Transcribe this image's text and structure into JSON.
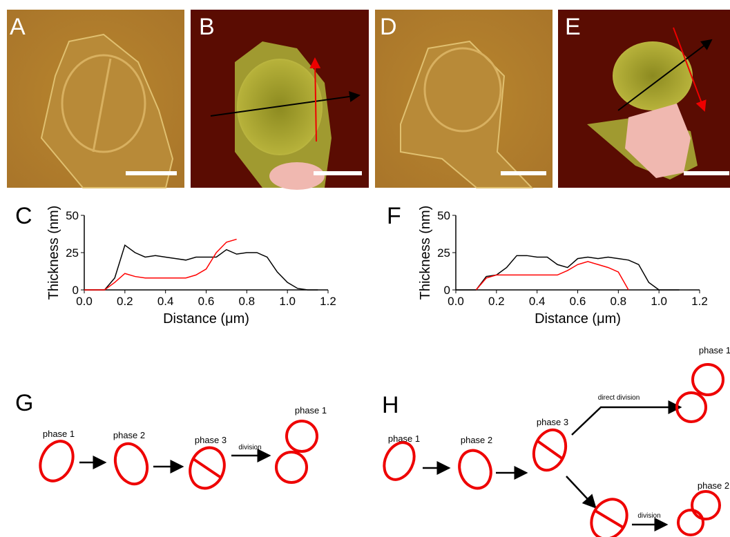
{
  "panels": [
    "A",
    "B",
    "D",
    "E"
  ],
  "chart_data": [
    {
      "type": "line",
      "panel": "C",
      "xlabel": "Distance (μm)",
      "ylabel": "Thickness (nm)",
      "x": [
        0,
        0.05,
        0.1,
        0.15,
        0.2,
        0.25,
        0.3,
        0.35,
        0.4,
        0.45,
        0.5,
        0.55,
        0.6,
        0.65,
        0.7,
        0.75,
        0.8,
        0.85,
        0.9,
        0.95,
        1.0,
        1.05,
        1.1,
        1.15,
        1.2
      ],
      "series": [
        {
          "color": "#000000",
          "values": [
            0,
            0,
            0,
            8,
            30,
            25,
            22,
            23,
            22,
            21,
            20,
            22,
            22,
            22,
            27,
            24,
            25,
            25,
            22,
            12,
            5,
            1,
            0,
            0,
            null
          ]
        },
        {
          "color": "#ff0000",
          "values": [
            0,
            0,
            0,
            5,
            11,
            9,
            8,
            8,
            8,
            8,
            8,
            10,
            14,
            25,
            32,
            34,
            null,
            null,
            null,
            null,
            null,
            null,
            null,
            null,
            null
          ]
        }
      ],
      "xlim": [
        0,
        1.2
      ],
      "ylim": [
        0,
        50
      ],
      "xticks": [
        {
          "value": 0,
          "label": "0.0"
        },
        0.2,
        0.4,
        0.6,
        0.8,
        {
          "value": 1,
          "label": "1.0"
        },
        1.2
      ],
      "yticks": [
        0,
        25,
        50
      ]
    },
    {
      "type": "line",
      "panel": "F",
      "xlabel": "Distance (μm)",
      "ylabel": "Thickness (nm)",
      "x": [
        0,
        0.05,
        0.1,
        0.15,
        0.2,
        0.25,
        0.3,
        0.35,
        0.4,
        0.45,
        0.5,
        0.55,
        0.6,
        0.65,
        0.7,
        0.75,
        0.8,
        0.85,
        0.9,
        0.95,
        1.0,
        1.05,
        1.1,
        1.15,
        1.2
      ],
      "series": [
        {
          "color": "#000000",
          "values": [
            0,
            0,
            0,
            9,
            10,
            15,
            23,
            23,
            22,
            22,
            17,
            15,
            21,
            22,
            21,
            22,
            21,
            20,
            17,
            5,
            0,
            0,
            0,
            null,
            null
          ]
        },
        {
          "color": "#ff0000",
          "values": [
            null,
            null,
            0,
            8,
            10,
            10,
            10,
            10,
            10,
            10,
            10,
            13,
            17,
            19,
            17,
            15,
            12,
            0,
            null,
            null,
            null,
            null,
            null,
            null,
            null
          ]
        }
      ],
      "xlim": [
        0,
        1.2
      ],
      "ylim": [
        0,
        50
      ],
      "xticks": [
        {
          "value": 0,
          "label": "0.0"
        },
        0.2,
        0.4,
        0.6,
        0.8,
        {
          "value": 1,
          "label": "1.0"
        },
        1.2
      ],
      "yticks": [
        0,
        25,
        50
      ]
    }
  ],
  "diagrams": {
    "G": {
      "letter": "G",
      "phases": [
        "phase 1",
        "phase 2",
        "phase 3",
        "phase 1"
      ],
      "arrow_label": "division"
    },
    "H": {
      "letter": "H",
      "phases": [
        "phase 1",
        "phase 2",
        "phase 3",
        "phase 1",
        "phase 2"
      ],
      "direct_label": "direct division",
      "arrow_label": "division"
    }
  }
}
